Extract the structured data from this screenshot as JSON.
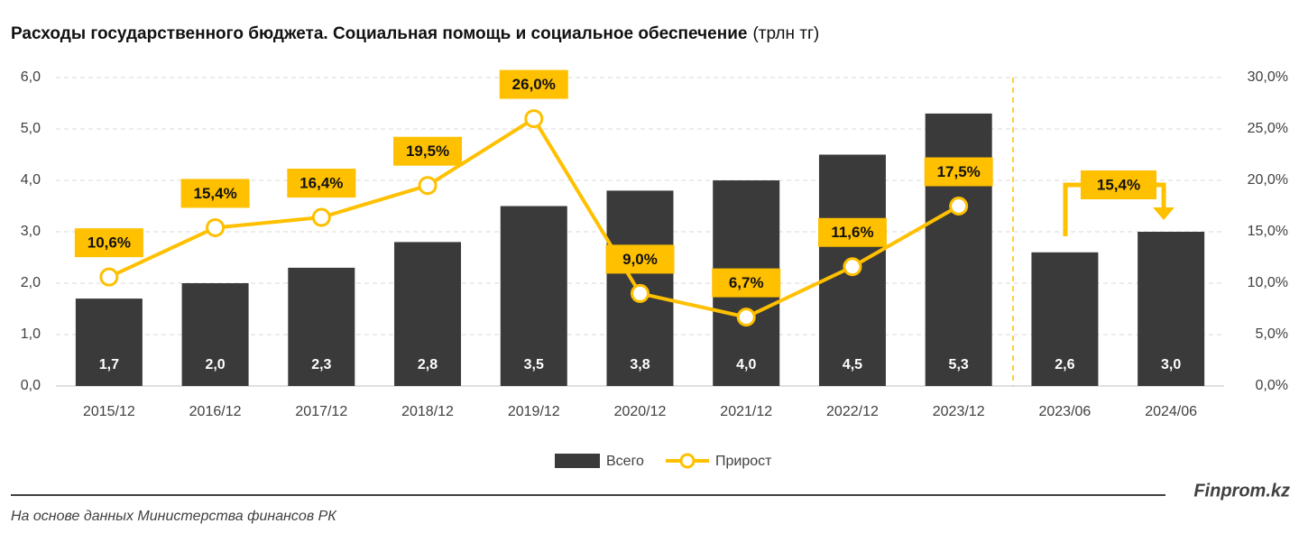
{
  "chart_data": {
    "type": "bar",
    "title": "Расходы государственного бюджета. Социальная помощь и социальное обеспечение",
    "title_unit": "(трлн тг)",
    "categories": [
      "2015/12",
      "2016/12",
      "2017/12",
      "2018/12",
      "2019/12",
      "2020/12",
      "2021/12",
      "2022/12",
      "2023/12",
      "2023/06",
      "2024/06"
    ],
    "series": [
      {
        "name": "Всего",
        "type": "bar",
        "color": "#3a3a3a",
        "values": [
          1.7,
          2.0,
          2.3,
          2.8,
          3.5,
          3.8,
          4.0,
          4.5,
          5.3,
          2.6,
          3.0
        ],
        "value_labels": [
          "1,7",
          "2,0",
          "2,3",
          "2,8",
          "3,5",
          "3,8",
          "4,0",
          "4,5",
          "5,3",
          "2,6",
          "3,0"
        ]
      },
      {
        "name": "Прирост",
        "type": "line",
        "axis": "y2",
        "color": "#ffc000",
        "values": [
          10.6,
          15.4,
          16.4,
          19.5,
          26.0,
          9.0,
          6.7,
          11.6,
          17.5,
          null,
          null
        ],
        "value_labels": [
          "10,6%",
          "15,4%",
          "16,4%",
          "19,5%",
          "26,0%",
          "9,0%",
          "6,7%",
          "11,6%",
          "17,5%",
          null,
          null
        ]
      }
    ],
    "annotation": "15,4%",
    "ylim": [
      0,
      6
    ],
    "yticks": [
      {
        "value": 0,
        "label": "0,0"
      },
      {
        "value": 1,
        "label": "1,0"
      },
      {
        "value": 2,
        "label": "2,0"
      },
      {
        "value": 3,
        "label": "3,0"
      },
      {
        "value": 4,
        "label": "4,0"
      },
      {
        "value": 5,
        "label": "5,0"
      },
      {
        "value": 6,
        "label": "6,0"
      }
    ],
    "y2lim": [
      0,
      30
    ],
    "y2ticks": [
      {
        "value": 0,
        "label": "0,0%"
      },
      {
        "value": 5,
        "label": "5,0%"
      },
      {
        "value": 10,
        "label": "10,0%"
      },
      {
        "value": 15,
        "label": "15,0%"
      },
      {
        "value": 20,
        "label": "20,0%"
      },
      {
        "value": 25,
        "label": "25,0%"
      },
      {
        "value": 30,
        "label": "30,0%"
      }
    ],
    "grid": true,
    "legend": "bottom",
    "brand": "Finprom.kz",
    "source": "На основе данных Министерства финансов РК"
  }
}
